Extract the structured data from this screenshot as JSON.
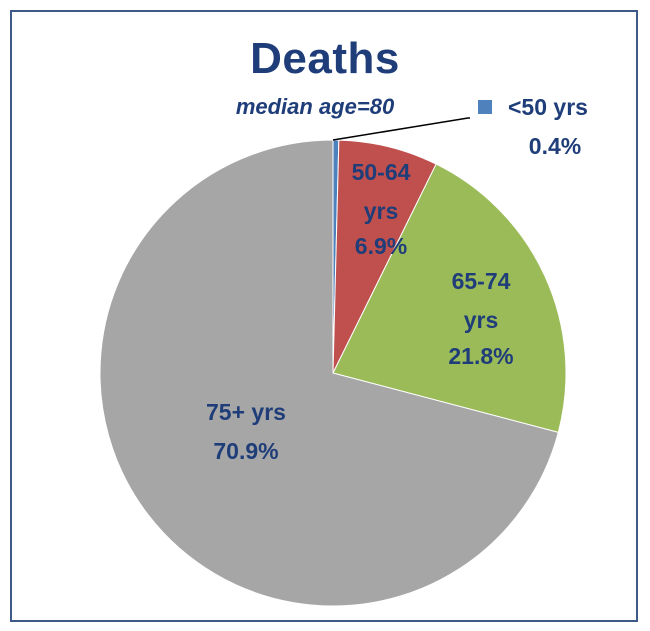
{
  "chart_data": {
    "type": "pie",
    "title": "Deaths",
    "subtitle": "median age=80",
    "slices": [
      {
        "label": "<50 yrs",
        "value": 0.4,
        "value_label": "0.4%",
        "color": "#4f81bd"
      },
      {
        "label": "50-64 yrs",
        "value": 6.9,
        "value_label": "6.9%",
        "color": "#c0504d"
      },
      {
        "label": "65-74 yrs",
        "value": 21.8,
        "value_label": "21.8%",
        "color": "#9bbb59"
      },
      {
        "label": "75+ yrs",
        "value": 70.9,
        "value_label": "70.9%",
        "color": "#a6a6a6"
      }
    ],
    "start_angle": "12 o'clock",
    "direction": "clockwise",
    "external_labels": [
      "<50 yrs"
    ]
  }
}
